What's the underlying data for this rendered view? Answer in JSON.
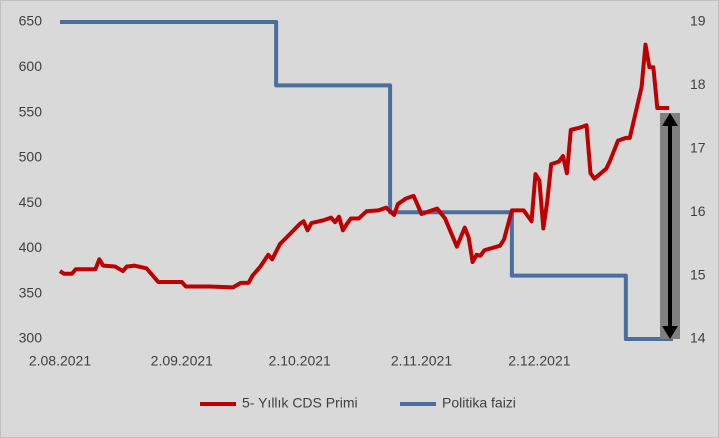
{
  "chart_data": {
    "type": "line",
    "xlim": [
      "2021-08-02",
      "2022-01-05"
    ],
    "xticks": [
      {
        "value": "2021-08-02",
        "label": "2.08.2021"
      },
      {
        "value": "2021-09-02",
        "label": "2.09.2021"
      },
      {
        "value": "2021-10-02",
        "label": "2.10.2021"
      },
      {
        "value": "2021-11-02",
        "label": "2.11.2021"
      },
      {
        "value": "2021-12-02",
        "label": "2.12.2021"
      }
    ],
    "ylim": [
      300,
      650
    ],
    "yticks": [
      300,
      350,
      400,
      450,
      500,
      550,
      600,
      650
    ],
    "y2lim": [
      14,
      19
    ],
    "y2ticks": [
      14,
      15,
      16,
      17,
      18,
      19
    ],
    "legend": "bottom",
    "series": [
      {
        "name": "5- Yıllık CDS Primi",
        "color": "#c00000",
        "x": [
          "2021-08-02",
          "2021-08-03",
          "2021-08-05",
          "2021-08-06",
          "2021-08-10",
          "2021-08-11",
          "2021-08-12",
          "2021-08-13",
          "2021-08-16",
          "2021-08-18",
          "2021-08-19",
          "2021-08-21",
          "2021-08-24",
          "2021-08-27",
          "2021-09-02",
          "2021-09-03",
          "2021-09-09",
          "2021-09-15",
          "2021-09-17",
          "2021-09-19",
          "2021-09-20",
          "2021-09-22",
          "2021-09-24",
          "2021-09-25",
          "2021-09-27",
          "2021-09-30",
          "2021-10-02",
          "2021-10-03",
          "2021-10-04",
          "2021-10-05",
          "2021-10-08",
          "2021-10-10",
          "2021-10-11",
          "2021-10-12",
          "2021-10-13",
          "2021-10-14",
          "2021-10-15",
          "2021-10-17",
          "2021-10-19",
          "2021-10-22",
          "2021-10-24",
          "2021-10-26",
          "2021-10-27",
          "2021-10-29",
          "2021-10-31",
          "2021-11-02",
          "2021-11-04",
          "2021-11-06",
          "2021-11-08",
          "2021-11-11",
          "2021-11-13",
          "2021-11-14",
          "2021-11-15",
          "2021-11-16",
          "2021-11-17",
          "2021-11-18",
          "2021-11-22",
          "2021-11-23",
          "2021-11-25",
          "2021-11-28",
          "2021-11-30",
          "2021-12-01",
          "2021-12-02",
          "2021-12-03",
          "2021-12-04",
          "2021-12-05",
          "2021-12-07",
          "2021-12-08",
          "2021-12-09",
          "2021-12-10",
          "2021-12-12",
          "2021-12-14",
          "2021-12-15",
          "2021-12-16",
          "2021-12-19",
          "2021-12-20",
          "2021-12-22",
          "2021-12-24",
          "2021-12-25",
          "2021-12-28",
          "2021-12-29",
          "2021-12-30",
          "2021-12-31",
          "2022-01-01",
          "2022-01-04"
        ],
        "values": [
          375,
          372,
          372,
          377,
          377,
          377,
          388,
          381,
          380,
          375,
          380,
          381,
          378,
          363,
          363,
          358,
          358,
          357,
          362,
          362,
          370,
          380,
          393,
          388,
          405,
          418,
          427,
          430,
          420,
          428,
          431,
          434,
          429,
          435,
          420,
          427,
          433,
          433,
          441,
          442,
          445,
          437,
          449,
          455,
          458,
          438,
          441,
          444,
          433,
          402,
          423,
          412,
          385,
          393,
          392,
          398,
          403,
          410,
          442,
          442,
          430,
          482,
          475,
          422,
          452,
          493,
          496,
          502,
          483,
          531,
          533,
          536,
          483,
          477,
          488,
          497,
          519,
          522,
          522,
          578,
          625,
          600,
          600,
          555,
          555
        ]
      },
      {
        "name": "Politika faizi",
        "color": "#4a6f9e",
        "axis": "y2",
        "x": [
          "2021-08-02",
          "2021-09-26",
          "2021-09-26",
          "2021-10-25",
          "2021-10-25",
          "2021-11-25",
          "2021-11-25",
          "2021-12-24",
          "2021-12-24",
          "2022-01-05"
        ],
        "values": [
          19,
          19,
          18,
          18,
          16,
          16,
          15,
          15,
          14,
          14
        ]
      }
    ]
  }
}
